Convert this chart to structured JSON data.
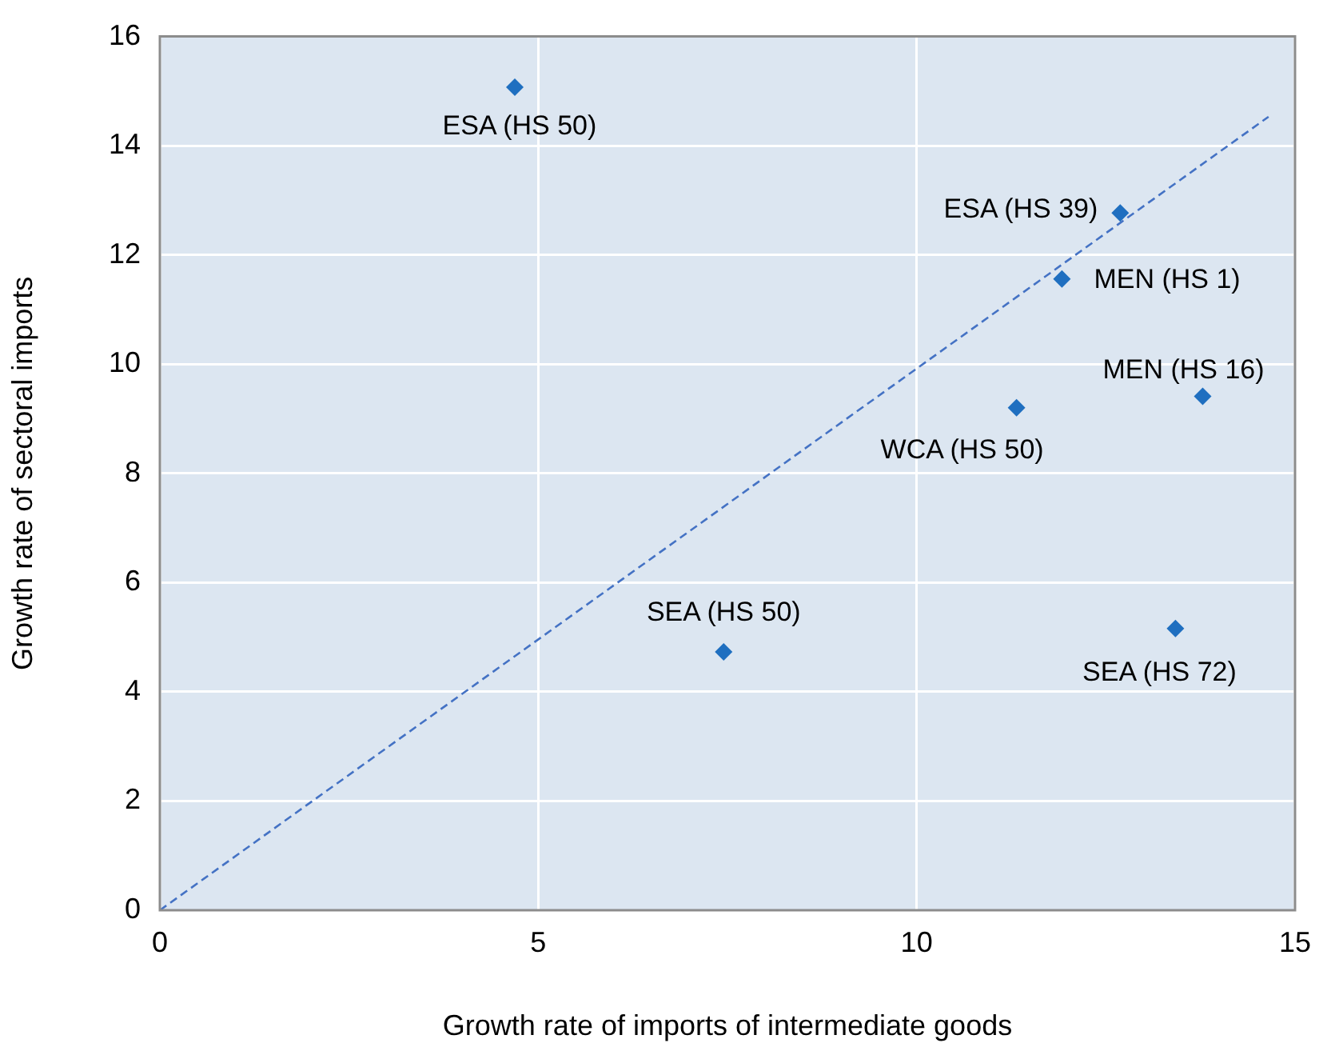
{
  "chart_data": {
    "type": "scatter",
    "xlabel": "Growth rate of imports of intermediate goods",
    "ylabel": "Growth rate of sectoral imports",
    "xlim": [
      0,
      15
    ],
    "xticks": [
      0,
      5,
      10,
      15
    ],
    "ylim": [
      0,
      16
    ],
    "yticks": [
      0,
      2,
      4,
      6,
      8,
      10,
      12,
      14,
      16
    ],
    "grid": true,
    "legend": false,
    "marker": "diamond",
    "series": [
      {
        "color": "#1f6fc0",
        "x": [
          4.69,
          12.69,
          11.92,
          13.78,
          11.32,
          7.45,
          13.42
        ],
        "values": [
          15.07,
          12.77,
          11.56,
          9.41,
          9.2,
          4.73,
          5.16
        ],
        "value_labels": [
          "ESA (HS 50)",
          "ESA (HS 39)",
          "MEN (HS 1)",
          "MEN (HS 16)",
          "WCA (HS 50)",
          "SEA (HS 50)",
          "SEA (HS 72)"
        ]
      },
      {
        "type": "line",
        "color": "#4472c4",
        "line_style": "dashed",
        "marker": "none",
        "x": [
          0,
          14.65
        ],
        "values": [
          0,
          14.53
        ]
      }
    ]
  }
}
